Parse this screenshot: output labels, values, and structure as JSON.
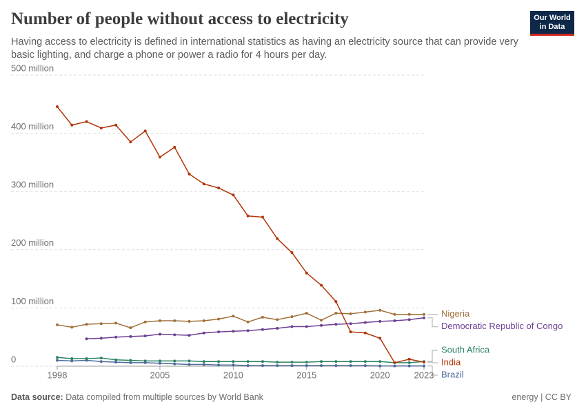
{
  "chart_data": {
    "type": "line",
    "title": "Number of people without access to electricity",
    "subtitle": "Having access to electricity is defined in international statistics as having an electricity source that can provide very basic lighting, and charge a phone or power a radio for 4 hours per day.",
    "logo": [
      "Our World",
      "in Data"
    ],
    "source_label": "Data source:",
    "source": "Data compiled from multiple sources by World Bank",
    "license": "energy | CC BY",
    "x": [
      1998,
      1999,
      2000,
      2001,
      2002,
      2003,
      2004,
      2005,
      2006,
      2007,
      2008,
      2009,
      2010,
      2011,
      2012,
      2013,
      2014,
      2015,
      2016,
      2017,
      2018,
      2019,
      2020,
      2021,
      2022,
      2023
    ],
    "xlim": [
      1998,
      2023
    ],
    "xticks": [
      1998,
      2005,
      2010,
      2015,
      2020,
      2023
    ],
    "ylim": [
      0,
      500
    ],
    "yticks": [
      0,
      {
        "value": 100,
        "label": "100 million"
      },
      {
        "value": 200,
        "label": "200 million"
      },
      {
        "value": 300,
        "label": "300 million"
      },
      {
        "value": 400,
        "label": "400 million"
      },
      {
        "value": 500,
        "label": "500 million"
      }
    ],
    "grid": true,
    "series": [
      {
        "name": "Nigeria",
        "color": "#a2713a",
        "values": [
          71,
          67,
          72,
          73,
          74,
          66,
          76,
          78,
          78,
          77,
          78,
          81,
          86,
          76,
          84,
          80,
          85,
          91,
          79,
          91,
          90,
          93,
          96,
          89,
          89,
          89
        ]
      },
      {
        "name": "Democratic Republic of Congo",
        "color": "#6d3e91",
        "values": [
          null,
          null,
          47,
          48,
          50,
          51,
          52,
          55,
          54,
          53,
          57,
          59,
          60,
          61,
          63,
          65,
          68,
          68,
          70,
          72,
          73,
          75,
          77,
          78,
          80,
          83
        ]
      },
      {
        "name": "South Africa",
        "color": "#2c8465",
        "values": [
          15,
          13,
          13,
          14,
          11,
          10,
          9,
          9,
          9,
          9,
          8,
          8,
          8,
          8,
          8,
          7,
          7,
          7,
          8,
          8,
          8,
          8,
          8,
          6,
          6,
          8
        ]
      },
      {
        "name": "India",
        "color": "#b13507",
        "values": [
          445.6,
          414,
          420,
          409,
          414,
          385,
          404,
          359,
          376,
          330,
          313,
          306,
          294,
          258,
          256,
          219,
          195,
          160,
          139,
          111,
          59,
          57,
          48,
          6,
          12,
          7
        ]
      },
      {
        "name": "Brazil",
        "color": "#4c6a9c",
        "values": [
          10,
          9,
          10,
          8,
          7,
          6,
          6,
          5,
          4,
          3,
          3,
          2,
          2,
          1,
          1,
          1,
          1,
          1,
          1,
          1,
          1,
          1,
          0.5,
          0.5,
          0.5,
          0.5
        ]
      }
    ]
  }
}
